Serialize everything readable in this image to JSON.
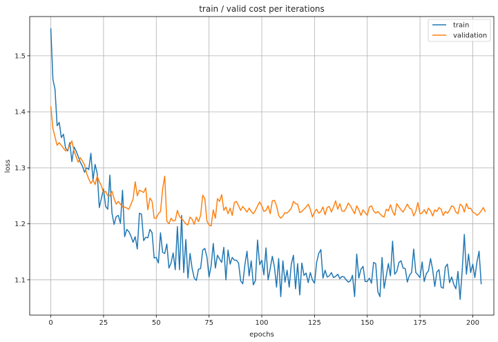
{
  "chart_data": {
    "type": "line",
    "title": "train / valid cost per iterations",
    "xlabel": "epochs",
    "ylabel": "loss",
    "xlim": [
      -10,
      210
    ],
    "ylim": [
      1.037,
      1.57
    ],
    "xticks": [
      0,
      25,
      50,
      75,
      100,
      125,
      150,
      175,
      200
    ],
    "xtick_labels": [
      "0",
      "25",
      "50",
      "75",
      "100",
      "125",
      "150",
      "175",
      "200"
    ],
    "yticks": [
      1.1,
      1.2,
      1.3,
      1.4,
      1.5
    ],
    "ytick_labels": [
      "1.1",
      "1.2",
      "1.3",
      "1.4",
      "1.5"
    ],
    "grid": true,
    "legend_position": "top-right",
    "series": [
      {
        "name": "train",
        "color": "#1f77b4",
        "x_start": 0,
        "x_step": 1,
        "values": [
          1.549,
          1.458,
          1.44,
          1.375,
          1.381,
          1.354,
          1.36,
          1.335,
          1.33,
          1.345,
          1.311,
          1.337,
          1.33,
          1.32,
          1.31,
          1.303,
          1.292,
          1.3,
          1.297,
          1.326,
          1.278,
          1.306,
          1.29,
          1.229,
          1.246,
          1.262,
          1.231,
          1.226,
          1.287,
          1.219,
          1.199,
          1.213,
          1.215,
          1.201,
          1.26,
          1.177,
          1.19,
          1.186,
          1.178,
          1.167,
          1.177,
          1.155,
          1.219,
          1.217,
          1.17,
          1.176,
          1.175,
          1.19,
          1.184,
          1.139,
          1.14,
          1.13,
          1.184,
          1.149,
          1.147,
          1.164,
          1.121,
          1.13,
          1.148,
          1.118,
          1.195,
          1.118,
          1.215,
          1.113,
          1.172,
          1.103,
          1.147,
          1.12,
          1.103,
          1.099,
          1.119,
          1.12,
          1.153,
          1.156,
          1.141,
          1.105,
          1.125,
          1.165,
          1.121,
          1.144,
          1.137,
          1.131,
          1.158,
          1.1,
          1.153,
          1.128,
          1.14,
          1.135,
          1.135,
          1.13,
          1.098,
          1.093,
          1.127,
          1.151,
          1.107,
          1.134,
          1.091,
          1.099,
          1.171,
          1.127,
          1.135,
          1.109,
          1.157,
          1.1,
          1.12,
          1.142,
          1.123,
          1.087,
          1.138,
          1.07,
          1.134,
          1.096,
          1.117,
          1.087,
          1.128,
          1.144,
          1.084,
          1.129,
          1.073,
          1.13,
          1.108,
          1.112,
          1.095,
          1.113,
          1.1,
          1.094,
          1.131,
          1.147,
          1.154,
          1.103,
          1.117,
          1.105,
          1.107,
          1.113,
          1.104,
          1.106,
          1.11,
          1.102,
          1.106,
          1.105,
          1.1,
          1.096,
          1.098,
          1.108,
          1.07,
          1.146,
          1.103,
          1.119,
          1.124,
          1.097,
          1.097,
          1.103,
          1.094,
          1.131,
          1.129,
          1.079,
          1.07,
          1.14,
          1.085,
          1.107,
          1.129,
          1.107,
          1.169,
          1.11,
          1.115,
          1.131,
          1.134,
          1.121,
          1.12,
          1.096,
          1.108,
          1.113,
          1.155,
          1.113,
          1.109,
          1.104,
          1.132,
          1.097,
          1.111,
          1.116,
          1.138,
          1.118,
          1.088,
          1.114,
          1.118,
          1.087,
          1.085,
          1.123,
          1.128,
          1.095,
          1.105,
          1.092,
          1.084,
          1.115,
          1.065,
          1.117,
          1.181,
          1.11,
          1.146,
          1.113,
          1.128,
          1.104,
          1.132,
          1.151,
          1.092
        ]
      },
      {
        "name": "validation",
        "color": "#ff7f0e",
        "x_start": 0,
        "x_step": 1,
        "values": [
          1.41,
          1.37,
          1.355,
          1.34,
          1.345,
          1.34,
          1.335,
          1.33,
          1.333,
          1.34,
          1.348,
          1.33,
          1.32,
          1.31,
          1.318,
          1.312,
          1.305,
          1.29,
          1.28,
          1.272,
          1.278,
          1.27,
          1.285,
          1.275,
          1.268,
          1.255,
          1.258,
          1.25,
          1.25,
          1.258,
          1.245,
          1.235,
          1.24,
          1.235,
          1.23,
          1.23,
          1.228,
          1.226,
          1.235,
          1.244,
          1.275,
          1.25,
          1.26,
          1.258,
          1.256,
          1.264,
          1.225,
          1.246,
          1.24,
          1.21,
          1.21,
          1.218,
          1.222,
          1.262,
          1.285,
          1.205,
          1.2,
          1.21,
          1.205,
          1.206,
          1.224,
          1.213,
          1.209,
          1.205,
          1.2,
          1.198,
          1.212,
          1.208,
          1.199,
          1.212,
          1.204,
          1.215,
          1.251,
          1.245,
          1.205,
          1.198,
          1.196,
          1.225,
          1.21,
          1.245,
          1.24,
          1.252,
          1.224,
          1.23,
          1.218,
          1.228,
          1.215,
          1.238,
          1.24,
          1.232,
          1.224,
          1.231,
          1.226,
          1.221,
          1.228,
          1.222,
          1.218,
          1.224,
          1.232,
          1.239,
          1.232,
          1.222,
          1.224,
          1.232,
          1.218,
          1.241,
          1.242,
          1.232,
          1.215,
          1.21,
          1.214,
          1.22,
          1.219,
          1.223,
          1.228,
          1.24,
          1.236,
          1.235,
          1.22,
          1.222,
          1.226,
          1.23,
          1.235,
          1.226,
          1.212,
          1.221,
          1.226,
          1.219,
          1.222,
          1.23,
          1.216,
          1.229,
          1.231,
          1.221,
          1.23,
          1.241,
          1.226,
          1.236,
          1.223,
          1.222,
          1.228,
          1.237,
          1.232,
          1.225,
          1.218,
          1.232,
          1.225,
          1.215,
          1.225,
          1.22,
          1.215,
          1.23,
          1.232,
          1.223,
          1.219,
          1.222,
          1.218,
          1.214,
          1.212,
          1.226,
          1.223,
          1.234,
          1.222,
          1.215,
          1.236,
          1.23,
          1.225,
          1.221,
          1.228,
          1.235,
          1.228,
          1.226,
          1.214,
          1.222,
          1.238,
          1.218,
          1.219,
          1.225,
          1.218,
          1.228,
          1.223,
          1.214,
          1.225,
          1.222,
          1.229,
          1.226,
          1.215,
          1.222,
          1.219,
          1.224,
          1.232,
          1.23,
          1.221,
          1.218,
          1.235,
          1.232,
          1.221,
          1.236,
          1.227,
          1.228,
          1.221,
          1.219,
          1.215,
          1.218,
          1.223,
          1.229,
          1.221
        ]
      }
    ]
  }
}
